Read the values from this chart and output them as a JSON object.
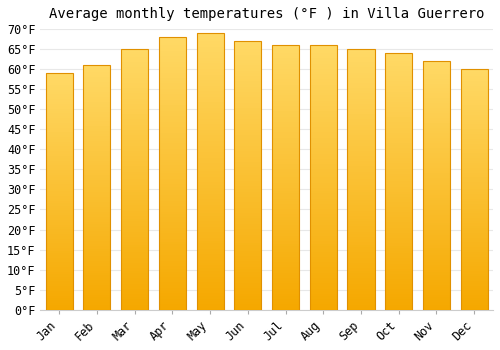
{
  "title": "Average monthly temperatures (°F ) in Villa Guerrero",
  "months": [
    "Jan",
    "Feb",
    "Mar",
    "Apr",
    "May",
    "Jun",
    "Jul",
    "Aug",
    "Sep",
    "Oct",
    "Nov",
    "Dec"
  ],
  "values": [
    59,
    61,
    65,
    68,
    69,
    67,
    66,
    66,
    65,
    64,
    62,
    60
  ],
  "bar_color_bottom": "#F5A800",
  "bar_color_top": "#FFD966",
  "background_color": "#FFFFFF",
  "grid_color": "#E8E8E8",
  "ylim": [
    0,
    70
  ],
  "yticks": [
    0,
    5,
    10,
    15,
    20,
    25,
    30,
    35,
    40,
    45,
    50,
    55,
    60,
    65,
    70
  ],
  "ylabel_suffix": "°F",
  "title_fontsize": 10,
  "tick_fontsize": 8.5,
  "bar_width": 0.72
}
